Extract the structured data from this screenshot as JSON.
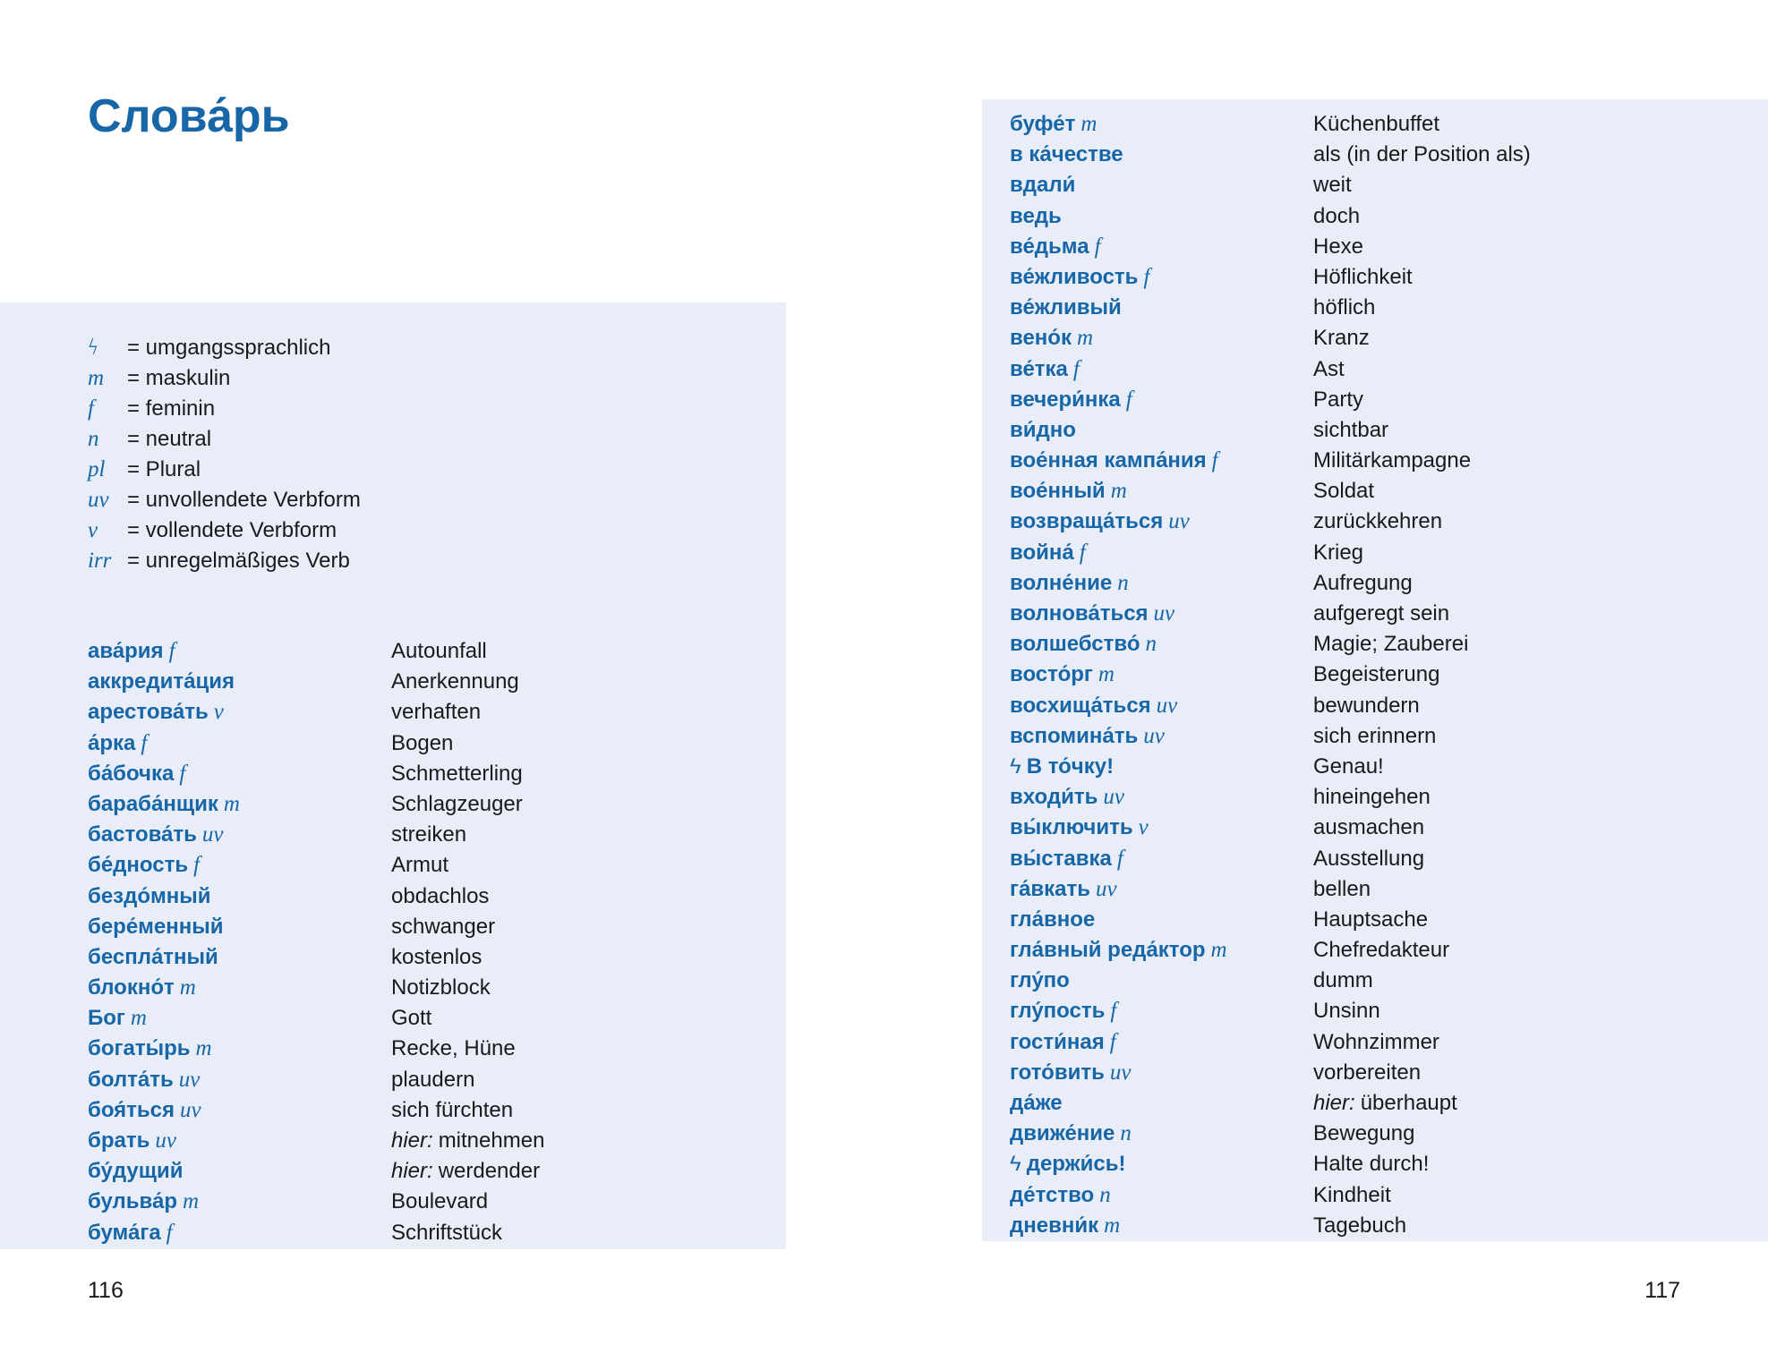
{
  "title": "Слова́рь",
  "colors": {
    "accent": "#1767a8",
    "panel": "#e8edf8"
  },
  "icons": {
    "colloquial": "lightning-icon"
  },
  "legend": [
    {
      "abbr": "ϟ",
      "text": "= umgangssprachlich"
    },
    {
      "abbr": "m",
      "text": "= maskulin"
    },
    {
      "abbr": "f",
      "text": "= feminin"
    },
    {
      "abbr": "n",
      "text": "= neutral"
    },
    {
      "abbr": "pl",
      "text": "= Plural"
    },
    {
      "abbr": "uv",
      "text": "= unvollendete Verbform"
    },
    {
      "abbr": "v",
      "text": "= vollendete Verbform"
    },
    {
      "abbr": "irr",
      "text": "= unregelmäßiges Verb"
    }
  ],
  "left_entries": [
    {
      "ru": "ава́рия",
      "gram": "f",
      "de": "Autounfall"
    },
    {
      "ru": "аккредита́ция",
      "gram": "",
      "de": "Anerkennung"
    },
    {
      "ru": "арестова́ть",
      "gram": "v",
      "de": "verhaften"
    },
    {
      "ru": "а́рка",
      "gram": "f",
      "de": "Bogen"
    },
    {
      "ru": "ба́бочка",
      "gram": "f",
      "de": "Schmetterling"
    },
    {
      "ru": "бараба́нщик",
      "gram": "m",
      "de": "Schlagzeuger"
    },
    {
      "ru": "бастова́ть",
      "gram": "uv",
      "de": "streiken"
    },
    {
      "ru": "бе́дность",
      "gram": "f",
      "de": "Armut"
    },
    {
      "ru": "бездо́мный",
      "gram": "",
      "de": "obdachlos"
    },
    {
      "ru": "бере́менный",
      "gram": "",
      "de": "schwanger"
    },
    {
      "ru": "беспла́тный",
      "gram": "",
      "de": "kostenlos"
    },
    {
      "ru": "блокно́т",
      "gram": "m",
      "de": "Notizblock"
    },
    {
      "ru": "Бог",
      "gram": "m",
      "de": "Gott"
    },
    {
      "ru": "богаты́рь",
      "gram": "m",
      "de": "Recke, Hüne"
    },
    {
      "ru": "болта́ть",
      "gram": "uv",
      "de": "plaudern"
    },
    {
      "ru": "боя́ться",
      "gram": "uv",
      "de": "sich fürchten"
    },
    {
      "ru": "брать",
      "gram": "uv",
      "hint": "hier:",
      "de": "mitnehmen"
    },
    {
      "ru": "бу́дущий",
      "gram": "",
      "hint": "hier:",
      "de": "werdender"
    },
    {
      "ru": "бульва́р",
      "gram": "m",
      "de": "Boulevard"
    },
    {
      "ru": "бума́га",
      "gram": "f",
      "de": "Schriftstück"
    }
  ],
  "right_entries": [
    {
      "ru": "буфе́т",
      "gram": "m",
      "de": "Küchenbuffet"
    },
    {
      "ru": "в ка́честве",
      "gram": "",
      "de": "als (in der Position als)"
    },
    {
      "ru": "вдали́",
      "gram": "",
      "de": "weit"
    },
    {
      "ru": "ведь",
      "gram": "",
      "de": "doch"
    },
    {
      "ru": "ве́дьма",
      "gram": "f",
      "de": "Hexe"
    },
    {
      "ru": "ве́жливость",
      "gram": "f",
      "de": "Höflichkeit"
    },
    {
      "ru": "ве́жливый",
      "gram": "",
      "de": "höflich"
    },
    {
      "ru": "вено́к",
      "gram": "m",
      "de": "Kranz"
    },
    {
      "ru": "ве́тка",
      "gram": "f",
      "de": "Ast"
    },
    {
      "ru": "вечери́нка",
      "gram": "f",
      "de": "Party"
    },
    {
      "ru": "ви́дно",
      "gram": "",
      "de": "sichtbar"
    },
    {
      "ru": "вое́нная кампа́ния",
      "gram": "f",
      "de": "Militärkampagne"
    },
    {
      "ru": "вое́нный",
      "gram": "m",
      "de": "Soldat"
    },
    {
      "ru": "возвраща́ться",
      "gram": "uv",
      "de": "zurückkehren"
    },
    {
      "ru": "война́",
      "gram": "f",
      "de": "Krieg"
    },
    {
      "ru": "волне́ние",
      "gram": "n",
      "de": "Aufregung"
    },
    {
      "ru": "волнова́ться",
      "gram": "uv",
      "de": "aufgeregt sein"
    },
    {
      "ru": "волшебство́",
      "gram": "n",
      "de": "Magie; Zauberei"
    },
    {
      "ru": "восто́рг",
      "gram": "m",
      "de": "Begeisterung"
    },
    {
      "ru": "восхища́ться",
      "gram": "uv",
      "de": "bewundern"
    },
    {
      "ru": "вспомина́ть",
      "gram": "uv",
      "de": "sich erinnern"
    },
    {
      "ru": "В то́чку!",
      "gram": "",
      "flag": "ϟ",
      "de": "Genau!"
    },
    {
      "ru": "входи́ть",
      "gram": "uv",
      "de": "hineingehen"
    },
    {
      "ru": "вы́ключить",
      "gram": "v",
      "de": "ausmachen"
    },
    {
      "ru": "вы́ставка",
      "gram": "f",
      "de": "Ausstellung"
    },
    {
      "ru": "га́вкать",
      "gram": "uv",
      "de": "bellen"
    },
    {
      "ru": "гла́вное",
      "gram": "",
      "de": "Hauptsache"
    },
    {
      "ru": "гла́вный реда́ктор",
      "gram": "m",
      "de": "Chefredakteur"
    },
    {
      "ru": "глу́по",
      "gram": "",
      "de": "dumm"
    },
    {
      "ru": "глу́пость",
      "gram": "f",
      "de": "Unsinn"
    },
    {
      "ru": "гости́ная",
      "gram": "f",
      "de": "Wohnzimmer"
    },
    {
      "ru": "гото́вить",
      "gram": "uv",
      "de": "vorbereiten"
    },
    {
      "ru": "да́же",
      "gram": "",
      "hint": "hier:",
      "de": "überhaupt"
    },
    {
      "ru": "движе́ние",
      "gram": "n",
      "de": "Bewegung"
    },
    {
      "ru": "держи́сь!",
      "gram": "",
      "flag": "ϟ",
      "de": "Halte durch!"
    },
    {
      "ru": "де́тство",
      "gram": "n",
      "de": "Kindheit"
    },
    {
      "ru": "дневни́к",
      "gram": "m",
      "de": "Tagebuch"
    }
  ],
  "page_numbers": {
    "left": "116",
    "right": "117"
  }
}
